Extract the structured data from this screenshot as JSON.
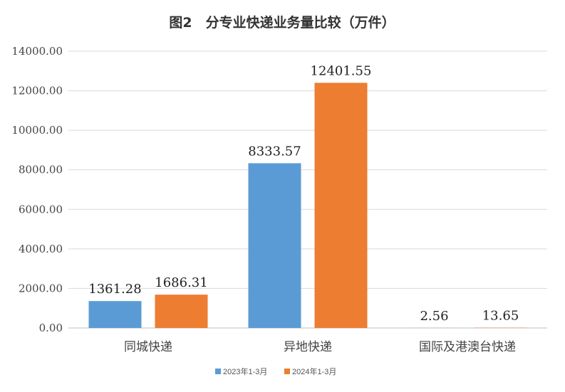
{
  "chart_data": {
    "type": "bar",
    "title": "图2　分专业快递业务量比较（万件）",
    "categories": [
      "同城快递",
      "异地快递",
      "国际及港澳台快递"
    ],
    "series": [
      {
        "name": "2023年1-3月",
        "values": [
          1361.28,
          8333.57,
          2.56
        ],
        "labels": [
          "1361.28",
          "8333.57",
          "2.56"
        ],
        "color": "#5B9BD5"
      },
      {
        "name": "2024年1-3月",
        "values": [
          1686.31,
          12401.55,
          13.65
        ],
        "labels": [
          "1686.31",
          "12401.55",
          "13.65"
        ],
        "color": "#ED7D31"
      }
    ],
    "ylim": [
      0,
      14000
    ],
    "yticks": [
      "0.00",
      "2000.00",
      "4000.00",
      "6000.00",
      "8000.00",
      "10000.00",
      "12000.00",
      "14000.00"
    ],
    "grid": true,
    "legend": "bottom-center"
  }
}
